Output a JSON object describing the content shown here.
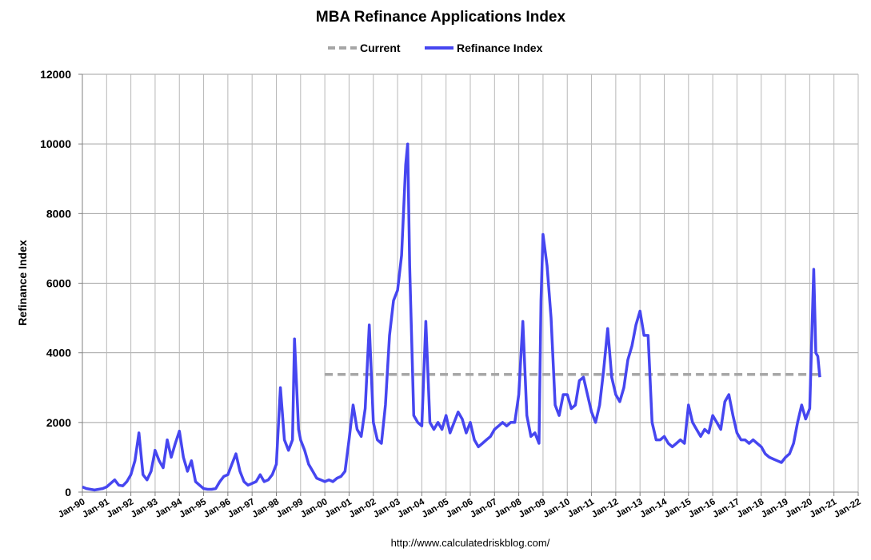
{
  "chart_data": {
    "type": "line",
    "title": "MBA Refinance Applications Index",
    "y_label": "Refinance Index",
    "source": "http://www.calculatedriskblog.com/",
    "legend": "top",
    "grid": true,
    "ylim": [
      0,
      12000
    ],
    "yticks": [
      0,
      2000,
      4000,
      6000,
      8000,
      10000,
      12000
    ],
    "xlim": [
      "1990-01",
      "2022-01"
    ],
    "xticks": [
      {
        "value": "1990-01",
        "label": "Jan-90"
      },
      {
        "value": "1991-01",
        "label": "Jan-91"
      },
      {
        "value": "1992-01",
        "label": "Jan-92"
      },
      {
        "value": "1993-01",
        "label": "Jan-93"
      },
      {
        "value": "1994-01",
        "label": "Jan-94"
      },
      {
        "value": "1995-01",
        "label": "Jan-95"
      },
      {
        "value": "1996-01",
        "label": "Jan-96"
      },
      {
        "value": "1997-01",
        "label": "Jan-97"
      },
      {
        "value": "1998-01",
        "label": "Jan-98"
      },
      {
        "value": "1999-01",
        "label": "Jan-99"
      },
      {
        "value": "2000-01",
        "label": "Jan-00"
      },
      {
        "value": "2001-01",
        "label": "Jan-01"
      },
      {
        "value": "2002-01",
        "label": "Jan-02"
      },
      {
        "value": "2003-01",
        "label": "Jan-03"
      },
      {
        "value": "2004-01",
        "label": "Jan-04"
      },
      {
        "value": "2005-01",
        "label": "Jan-05"
      },
      {
        "value": "2006-01",
        "label": "Jan-06"
      },
      {
        "value": "2007-01",
        "label": "Jan-07"
      },
      {
        "value": "2008-01",
        "label": "Jan-08"
      },
      {
        "value": "2009-01",
        "label": "Jan-09"
      },
      {
        "value": "2010-01",
        "label": "Jan-10"
      },
      {
        "value": "2011-01",
        "label": "Jan-11"
      },
      {
        "value": "2012-01",
        "label": "Jan-12"
      },
      {
        "value": "2013-01",
        "label": "Jan-13"
      },
      {
        "value": "2014-01",
        "label": "Jan-14"
      },
      {
        "value": "2015-01",
        "label": "Jan-15"
      },
      {
        "value": "2016-01",
        "label": "Jan-16"
      },
      {
        "value": "2017-01",
        "label": "Jan-17"
      },
      {
        "value": "2018-01",
        "label": "Jan-18"
      },
      {
        "value": "2019-01",
        "label": "Jan-19"
      },
      {
        "value": "2020-01",
        "label": "Jan-20"
      },
      {
        "value": "2021-01",
        "label": "Jan-21"
      },
      {
        "value": "2022-01",
        "label": "Jan-22"
      }
    ],
    "series": [
      {
        "name": "Current",
        "color": "#a6a6a6",
        "dashed": true,
        "x": [
          "2000-01",
          "2020-06"
        ],
        "values": [
          3380,
          3380
        ]
      },
      {
        "name": "Refinance Index",
        "color": "#4646f0",
        "dashed": false,
        "x": [
          "1990-01",
          "1990-03",
          "1990-05",
          "1990-07",
          "1990-09",
          "1990-11",
          "1991-01",
          "1991-03",
          "1991-05",
          "1991-07",
          "1991-09",
          "1991-11",
          "1992-01",
          "1992-03",
          "1992-05",
          "1992-07",
          "1992-09",
          "1992-11",
          "1993-01",
          "1993-03",
          "1993-05",
          "1993-07",
          "1993-09",
          "1993-11",
          "1994-01",
          "1994-03",
          "1994-05",
          "1994-07",
          "1994-09",
          "1994-11",
          "1995-01",
          "1995-03",
          "1995-05",
          "1995-07",
          "1995-09",
          "1995-11",
          "1996-01",
          "1996-03",
          "1996-05",
          "1996-07",
          "1996-09",
          "1996-11",
          "1997-01",
          "1997-03",
          "1997-05",
          "1997-07",
          "1997-09",
          "1997-11",
          "1998-01",
          "1998-03",
          "1998-05",
          "1998-07",
          "1998-09",
          "1998-10",
          "1998-12",
          "1999-01",
          "1999-03",
          "1999-05",
          "1999-07",
          "1999-09",
          "1999-11",
          "2000-01",
          "2000-03",
          "2000-05",
          "2000-07",
          "2000-09",
          "2000-11",
          "2001-01",
          "2001-03",
          "2001-05",
          "2001-07",
          "2001-09",
          "2001-11",
          "2002-01",
          "2002-03",
          "2002-05",
          "2002-07",
          "2002-09",
          "2002-11",
          "2003-01",
          "2003-03",
          "2003-05",
          "2003-06",
          "2003-07",
          "2003-09",
          "2003-11",
          "2004-01",
          "2004-03",
          "2004-05",
          "2004-07",
          "2004-09",
          "2004-11",
          "2005-01",
          "2005-03",
          "2005-05",
          "2005-07",
          "2005-09",
          "2005-11",
          "2006-01",
          "2006-03",
          "2006-05",
          "2006-07",
          "2006-09",
          "2006-11",
          "2007-01",
          "2007-03",
          "2007-05",
          "2007-07",
          "2007-09",
          "2007-11",
          "2008-01",
          "2008-03",
          "2008-05",
          "2008-07",
          "2008-09",
          "2008-11",
          "2008-12",
          "2009-01",
          "2009-03",
          "2009-05",
          "2009-07",
          "2009-09",
          "2009-11",
          "2010-01",
          "2010-03",
          "2010-05",
          "2010-07",
          "2010-09",
          "2010-11",
          "2011-01",
          "2011-03",
          "2011-05",
          "2011-07",
          "2011-09",
          "2011-11",
          "2012-01",
          "2012-03",
          "2012-05",
          "2012-07",
          "2012-09",
          "2012-11",
          "2013-01",
          "2013-03",
          "2013-05",
          "2013-07",
          "2013-09",
          "2013-11",
          "2014-01",
          "2014-03",
          "2014-05",
          "2014-07",
          "2014-09",
          "2014-11",
          "2015-01",
          "2015-03",
          "2015-05",
          "2015-07",
          "2015-09",
          "2015-11",
          "2016-01",
          "2016-03",
          "2016-05",
          "2016-07",
          "2016-09",
          "2016-11",
          "2017-01",
          "2017-03",
          "2017-05",
          "2017-07",
          "2017-09",
          "2017-11",
          "2018-01",
          "2018-03",
          "2018-05",
          "2018-07",
          "2018-09",
          "2018-11",
          "2019-01",
          "2019-03",
          "2019-05",
          "2019-07",
          "2019-09",
          "2019-11",
          "2020-01",
          "2020-03",
          "2020-04",
          "2020-05",
          "2020-06"
        ],
        "values": [
          150,
          100,
          80,
          60,
          80,
          100,
          150,
          250,
          350,
          200,
          180,
          300,
          500,
          900,
          1700,
          500,
          350,
          600,
          1200,
          900,
          700,
          1500,
          1000,
          1400,
          1750,
          1000,
          600,
          900,
          300,
          200,
          100,
          80,
          80,
          100,
          300,
          450,
          500,
          800,
          1100,
          600,
          300,
          200,
          250,
          300,
          500,
          300,
          350,
          500,
          800,
          3000,
          1500,
          1200,
          1500,
          4400,
          1800,
          1500,
          1200,
          800,
          600,
          400,
          350,
          300,
          350,
          300,
          400,
          450,
          600,
          1500,
          2500,
          1800,
          1600,
          2400,
          4800,
          2000,
          1500,
          1400,
          2500,
          4500,
          5500,
          5800,
          6800,
          9400,
          10000,
          6500,
          2200,
          2000,
          1900,
          4900,
          2000,
          1800,
          2000,
          1800,
          2200,
          1700,
          2000,
          2300,
          2100,
          1700,
          2000,
          1500,
          1300,
          1400,
          1500,
          1600,
          1800,
          1900,
          2000,
          1900,
          2000,
          2000,
          2800,
          4900,
          2200,
          1600,
          1700,
          1400,
          5500,
          7400,
          6500,
          5000,
          2500,
          2200,
          2800,
          2800,
          2400,
          2500,
          3200,
          3300,
          2800,
          2300,
          2000,
          2500,
          3500,
          4700,
          3300,
          2800,
          2600,
          3000,
          3800,
          4200,
          4800,
          5200,
          4500,
          4500,
          2000,
          1500,
          1500,
          1600,
          1400,
          1300,
          1400,
          1500,
          1400,
          2500,
          2000,
          1800,
          1600,
          1800,
          1700,
          2200,
          2000,
          1800,
          2600,
          2800,
          2200,
          1700,
          1500,
          1500,
          1400,
          1500,
          1400,
          1300,
          1100,
          1000,
          950,
          900,
          850,
          1000,
          1100,
          1400,
          2000,
          2500,
          2100,
          2400,
          6400,
          4000,
          3900,
          3300
        ]
      }
    ]
  }
}
